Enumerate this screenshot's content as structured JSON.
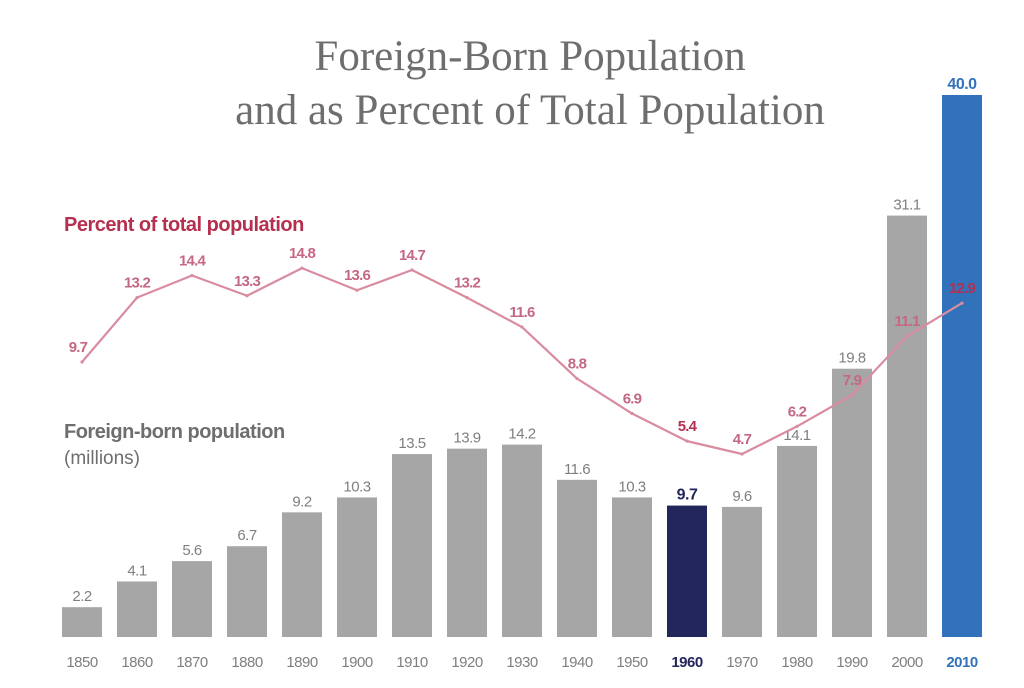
{
  "chart_data": {
    "type": "bar",
    "title_line1": "Foreign-Born Population",
    "title_line2": "and as Percent of Total Population",
    "categories": [
      "1850",
      "1860",
      "1870",
      "1880",
      "1890",
      "1900",
      "1910",
      "1920",
      "1930",
      "1940",
      "1950",
      "1960",
      "1970",
      "1980",
      "1990",
      "2000",
      "2010"
    ],
    "series": [
      {
        "name": "Foreign-born population",
        "unit": "(millions)",
        "chart": "bar",
        "values": [
          2.2,
          4.1,
          5.6,
          6.7,
          9.2,
          10.3,
          13.5,
          13.9,
          14.2,
          11.6,
          10.3,
          9.7,
          9.6,
          14.1,
          19.8,
          31.1,
          40.0
        ],
        "labels": [
          "2.2",
          "4.1",
          "5.6",
          "6.7",
          "9.2",
          "10.3",
          "13.5",
          "13.9",
          "14.2",
          "11.6",
          "10.3",
          "9.7",
          "9.6",
          "14.1",
          "19.8",
          "31.1",
          "40.0"
        ]
      },
      {
        "name": "Percent of total population",
        "chart": "line",
        "values": [
          9.7,
          13.2,
          14.4,
          13.3,
          14.8,
          13.6,
          14.7,
          13.2,
          11.6,
          8.8,
          6.9,
          5.4,
          4.7,
          6.2,
          7.9,
          11.1,
          12.9
        ],
        "labels": [
          "9.7",
          "13.2",
          "14.4",
          "13.3",
          "14.8",
          "13.6",
          "14.7",
          "13.2",
          "11.6",
          "8.8",
          "6.9",
          "5.4",
          "4.7",
          "6.2",
          "7.9",
          "11.1",
          "12.9"
        ]
      }
    ],
    "highlights": {
      "1960": "dark",
      "2010": "blue"
    },
    "colors": {
      "bar": "#a6a6a6",
      "bar_1960": "#22265a",
      "bar_2010": "#3272bb",
      "line": "#d98ca0",
      "pct_text": "#c46883",
      "pct_text_highlight": "#b5304f",
      "axis_text": "#7f7f7f",
      "axis_text_1960": "#22265a",
      "axis_text_2010": "#3272bb",
      "title": "#6e6e6e"
    },
    "ylim_bars": [
      0,
      40
    ],
    "xlabel": "",
    "ylabel": ""
  }
}
